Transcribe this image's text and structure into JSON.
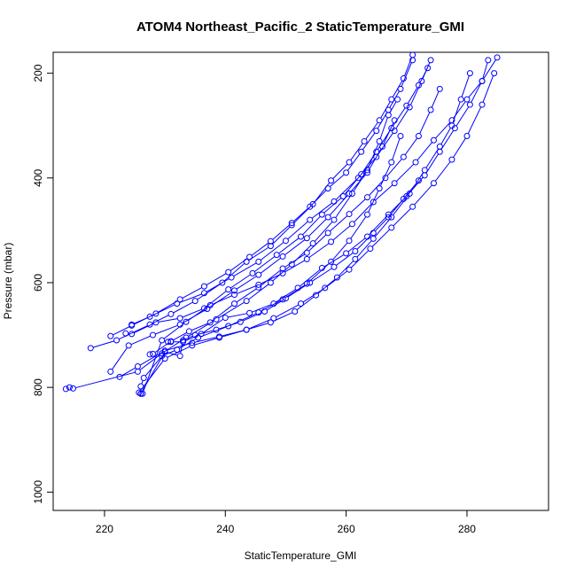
{
  "chart_data": {
    "type": "line",
    "title": "ATOM4 Northeast_Pacific_2 StaticTemperature_GMI",
    "xlabel": "StaticTemperature_GMI",
    "ylabel": "Pressure (mbar)",
    "xlim": [
      211.5,
      293.5
    ],
    "ylim": [
      1035,
      160
    ],
    "y_reversed": true,
    "x_ticks": [
      220,
      240,
      260,
      280
    ],
    "y_ticks": [
      200,
      400,
      600,
      800,
      1000
    ],
    "grid": false,
    "legend": "none",
    "marker": "open-circle",
    "color": "#0000ff",
    "series": [
      {
        "x": [
          226.0,
          226.0,
          226.5,
          229.5,
          232.0,
          235.5,
          240.5,
          245.5,
          249.5,
          253.5,
          257.5,
          260.5,
          263.5,
          265.5,
          267.5,
          269.0
        ],
        "y": [
          812,
          798,
          782,
          740,
          728,
          705,
          683,
          657,
          632,
          602,
          560,
          520,
          470,
          420,
          370,
          320
        ]
      },
      {
        "x": [
          213.6,
          214.2,
          214.8,
          225.5,
          229.5,
          233.5,
          238.5,
          243.5,
          247.5,
          251.0,
          254.5,
          258.0,
          261.0,
          263.5,
          265.5,
          267.0,
          268.5
        ],
        "y": [
          803,
          800,
          802,
          770,
          735,
          705,
          670,
          635,
          600,
          565,
          525,
          480,
          430,
          385,
          330,
          280,
          250
        ]
      },
      {
        "x": [
          223.5,
          224.5,
          228.5,
          232.5,
          236.5,
          240.5,
          244.5,
          248.5,
          252.5,
          256.0,
          259.5,
          262.5,
          265.0,
          267.5,
          270.0,
          272.0,
          273.5
        ],
        "y": [
          697,
          698,
          676,
          668,
          649,
          613,
          582,
          547,
          512,
          470,
          435,
          393,
          350,
          305,
          262,
          223,
          190
        ]
      },
      {
        "x": [
          227.5,
          228.0,
          231.0,
          234.0,
          237.5,
          241.5,
          245.5,
          249.5,
          253.5,
          257.0,
          260.5,
          263.5,
          266.5,
          269.5,
          272.0,
          274.0,
          275.5
        ],
        "y": [
          737,
          736,
          712,
          693,
          676,
          640,
          609,
          573,
          543,
          505,
          469,
          437,
          400,
          360,
          320,
          270,
          230
        ]
      },
      {
        "x": [
          217.7,
          222.0,
          227.5,
          231.0,
          235.0,
          239.5,
          243.5,
          247.5,
          251.0,
          254.5,
          257.5,
          260.5,
          263.0,
          265.5,
          267.5,
          269.5,
          271.0
        ],
        "y": [
          725,
          710,
          680,
          660,
          635,
          600,
          560,
          530,
          490,
          450,
          405,
          370,
          330,
          290,
          250,
          210,
          165
        ]
      },
      {
        "x": [
          221.0,
          224.5,
          228.5,
          232.5,
          236.5,
          240.5,
          244.0,
          247.5,
          251.0,
          254.0,
          257.0,
          260.0,
          262.5,
          265.0,
          267.0,
          269.0,
          271.0
        ],
        "y": [
          702,
          682,
          659,
          632,
          607,
          580,
          551,
          521,
          486,
          455,
          420,
          390,
          350,
          310,
          270,
          230,
          175
        ]
      },
      {
        "x": [
          222.5,
          225.5,
          230.0,
          234.5,
          239.0,
          243.5,
          247.5,
          251.5,
          255.0,
          258.5,
          261.5,
          264.5,
          267.5,
          270.5,
          273.0,
          275.5,
          277.5,
          279.0,
          280.5
        ],
        "y": [
          780,
          760,
          730,
          715,
          703,
          690,
          676,
          655,
          624,
          590,
          555,
          516,
          475,
          430,
          385,
          340,
          300,
          250,
          200
        ]
      },
      {
        "x": [
          226.0,
          230.0,
          232.5,
          233.0,
          235.0,
          238.5,
          242.5,
          246.5,
          250.0,
          254.0,
          258.0,
          261.5,
          264.5,
          267.0,
          269.5,
          272.0
        ],
        "y": [
          812,
          732,
          740,
          710,
          700,
          690,
          675,
          655,
          630,
          600,
          570,
          540,
          505,
          475,
          440,
          405
        ]
      },
      {
        "x": [
          230.5,
          231.0,
          233.0,
          236.0,
          240.0,
          244.0,
          248.0,
          252.0,
          256.0,
          260.0,
          263.5,
          267.0,
          270.0,
          273.0,
          275.5,
          278.0,
          280.5,
          282.5,
          283.5
        ],
        "y": [
          713,
          713,
          713,
          698,
          667,
          658,
          640,
          610,
          572,
          544,
          512,
          470,
          435,
          395,
          350,
          305,
          260,
          215,
          175
        ]
      },
      {
        "x": [
          225.7,
          230.0,
          234.5,
          239.0,
          243.5,
          248.0,
          252.5,
          256.5,
          260.5,
          264.0,
          267.5,
          271.0,
          274.5,
          277.5,
          280.0,
          282.5,
          284.5
        ],
        "y": [
          810,
          745,
          720,
          705,
          690,
          668,
          640,
          610,
          575,
          535,
          495,
          455,
          410,
          365,
          320,
          260,
          200
        ]
      },
      {
        "x": [
          226.3,
          229.5,
          233.5,
          237.5,
          241.5,
          245.5,
          249.5,
          253.5,
          257.5,
          261.0,
          264.5,
          268.0,
          271.5,
          274.5,
          277.5,
          280.0,
          282.5,
          285.0
        ],
        "y": [
          812,
          710,
          675,
          643,
          623,
          604,
          582,
          555,
          522,
          488,
          446,
          410,
          370,
          328,
          290,
          250,
          215,
          170
        ]
      },
      {
        "x": [
          224.5,
          227.5,
          232.0,
          236.5,
          241.0,
          245.5,
          250.0,
          254.0,
          258.0,
          262.0,
          265.0,
          268.0,
          270.5,
          272.5,
          274.0
        ],
        "y": [
          680,
          665,
          640,
          620,
          590,
          560,
          520,
          480,
          445,
          400,
          360,
          310,
          265,
          215,
          175
        ]
      },
      {
        "x": [
          221.0,
          224.0,
          228.0,
          232.5,
          237.0,
          241.5,
          245.5,
          249.5,
          253.5,
          257.0,
          260.5,
          263.5,
          266.0,
          268.0
        ],
        "y": [
          770,
          720,
          700,
          680,
          650,
          615,
          585,
          550,
          515,
          475,
          430,
          390,
          340,
          290
        ]
      }
    ]
  }
}
